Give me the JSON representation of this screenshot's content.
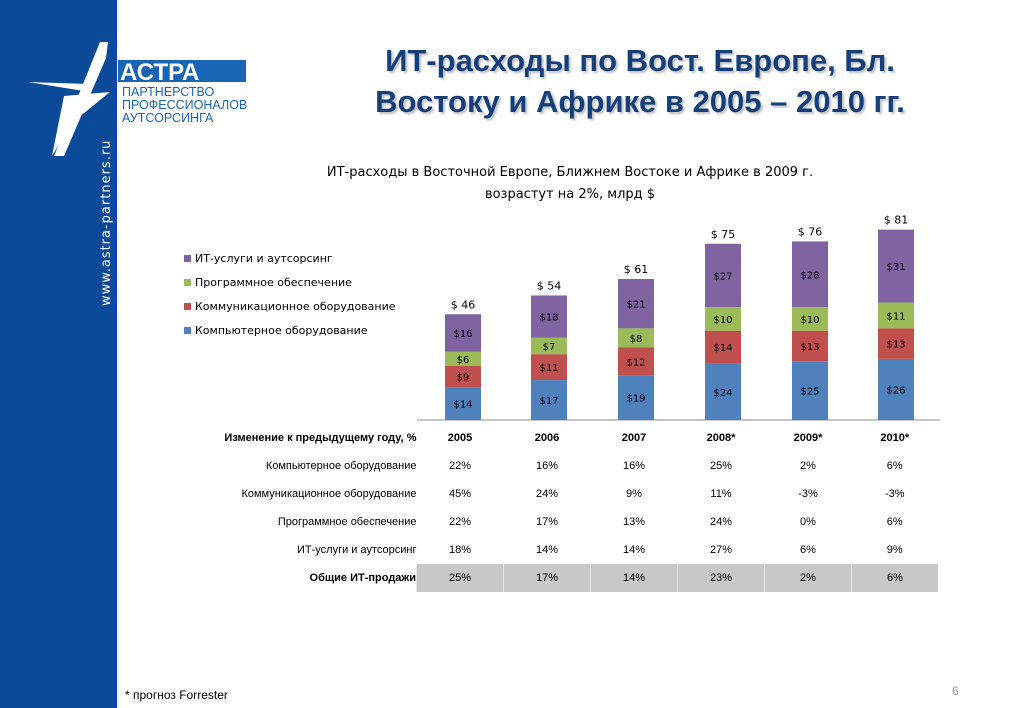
{
  "slide": {
    "title_line1": "ИТ-расходы по Вост. Европе, Бл.",
    "title_line2": "Востоку и Африке в 2005 – 2010 гг.",
    "side_url": "www.astra-partners.ru",
    "footnote": "* прогноз Forrester",
    "page_number": "6",
    "brand_color": "#0b4a98"
  },
  "logo": {
    "wordmark": "АСТРА",
    "line1": "ПАРТНЕРСТВО",
    "line2": "ПРОФЕССИОНАЛОВ",
    "line3": "АУТСОРСИНГА"
  },
  "chart_data": {
    "type": "bar",
    "stacked": true,
    "title_line1": "ИТ-расходы в Восточной Европе, Ближнем Востоке и Африке в 2009 г.",
    "title_line2": "возрастут на 2%, млрд $",
    "categories": [
      "2005",
      "2006",
      "2007",
      "2008*",
      "2009*",
      "2010*"
    ],
    "series": [
      {
        "name": "Компьютерное оборудование",
        "color": "#4f81bd",
        "values": [
          14,
          17,
          19,
          24,
          25,
          26
        ],
        "labels": [
          "$14",
          "$17",
          "$19",
          "$24",
          "$25",
          "$26"
        ]
      },
      {
        "name": "Коммуникационное оборудование",
        "color": "#c0504d",
        "values": [
          9,
          11,
          12,
          14,
          13,
          13
        ],
        "labels": [
          "$9",
          "$11",
          "$12",
          "$14",
          "$13",
          "$13"
        ]
      },
      {
        "name": "Программное обеспечение",
        "color": "#9bbb59",
        "values": [
          6,
          7,
          8,
          10,
          10,
          11
        ],
        "labels": [
          "$6",
          "$7",
          "$8",
          "$10",
          "$10",
          "$11"
        ]
      },
      {
        "name": "ИТ-услуги и аутсорсинг",
        "color": "#8064a2",
        "values": [
          16,
          18,
          21,
          27,
          28,
          31
        ],
        "labels": [
          "$16",
          "$18",
          "$21",
          "$27",
          "$28",
          "$31"
        ]
      }
    ],
    "totals": [
      46,
      54,
      61,
      75,
      76,
      81
    ],
    "total_labels": [
      "$ 46",
      "$ 54",
      "$ 61",
      "$ 75",
      "$ 76",
      "$ 81"
    ],
    "legend_position": "left",
    "grid": false
  },
  "table": {
    "header_label": "Изменение к предыдущему году, %",
    "years": [
      "2005",
      "2006",
      "2007",
      "2008*",
      "2009*",
      "2010*"
    ],
    "rows": [
      {
        "label": "Компьютерное оборудование",
        "values": [
          "22%",
          "16%",
          "16%",
          "25%",
          "2%",
          "6%"
        ]
      },
      {
        "label": "Коммуникационное оборудование",
        "values": [
          "45%",
          "24%",
          "9%",
          "11%",
          "-3%",
          "-3%"
        ]
      },
      {
        "label": "Программное обеспечение",
        "values": [
          "22%",
          "17%",
          "13%",
          "24%",
          "0%",
          "6%"
        ]
      },
      {
        "label": "ИТ-услуги и аутсорсинг",
        "values": [
          "18%",
          "14%",
          "14%",
          "27%",
          "6%",
          "9%"
        ]
      }
    ],
    "total": {
      "label": "Общие ИТ-продажи",
      "values": [
        "25%",
        "17%",
        "14%",
        "23%",
        "2%",
        "6%"
      ]
    }
  }
}
